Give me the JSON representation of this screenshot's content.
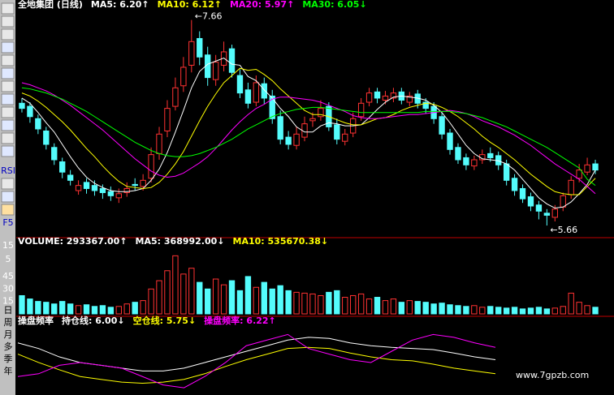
{
  "chart_data": [
    {
      "type": "candlestick",
      "title": "全地集团 (日线)",
      "ylim": [
        5.55,
        7.76
      ],
      "up_color": "#ff3232",
      "down_color": "#54fcfc",
      "open": [
        6.85,
        6.82,
        6.7,
        6.58,
        6.42,
        6.28,
        6.15,
        6.0,
        6.08,
        6.05,
        6.02,
        5.99,
        5.93,
        5.98,
        6.06,
        6.04,
        6.12,
        6.36,
        6.58,
        6.82,
        7.02,
        7.22,
        7.48,
        7.32,
        7.08,
        7.22,
        7.38,
        7.12,
        6.98,
        6.86,
        7.04,
        6.92,
        6.72,
        6.52,
        6.44,
        6.52,
        6.68,
        6.72,
        6.82,
        6.64,
        6.48,
        6.56,
        6.72,
        6.86,
        6.96,
        6.88,
        6.9,
        6.96,
        6.86,
        6.94,
        6.86,
        6.82,
        6.72,
        6.56,
        6.42,
        6.32,
        6.24,
        6.3,
        6.36,
        6.34,
        6.26,
        6.12,
        6.02,
        5.94,
        5.86,
        5.78,
        5.74,
        5.84,
        5.96,
        6.12,
        6.18,
        6.26
      ],
      "high": [
        6.9,
        6.86,
        6.74,
        6.62,
        6.46,
        6.32,
        6.2,
        6.1,
        6.12,
        6.1,
        6.06,
        6.04,
        6.02,
        6.08,
        6.12,
        6.16,
        6.42,
        6.62,
        6.88,
        7.1,
        7.3,
        7.66,
        7.55,
        7.4,
        7.32,
        7.45,
        7.42,
        7.18,
        7.05,
        7.12,
        7.1,
        6.98,
        6.78,
        6.58,
        6.62,
        6.72,
        6.76,
        6.88,
        6.86,
        6.7,
        6.6,
        6.76,
        6.9,
        7.0,
        7.0,
        6.97,
        7.0,
        7.0,
        6.96,
        6.98,
        6.9,
        6.86,
        6.76,
        6.6,
        6.46,
        6.36,
        6.34,
        6.4,
        6.42,
        6.38,
        6.3,
        6.16,
        6.06,
        5.98,
        5.9,
        5.82,
        5.86,
        5.98,
        6.14,
        6.26,
        6.32,
        6.3
      ],
      "low": [
        6.76,
        6.66,
        6.55,
        6.4,
        6.25,
        6.12,
        6.05,
        5.96,
        5.97,
        5.95,
        5.92,
        5.9,
        5.88,
        5.94,
        6.0,
        6.0,
        6.08,
        6.3,
        6.52,
        6.78,
        6.96,
        7.15,
        7.22,
        7.02,
        7.02,
        7.16,
        7.1,
        6.9,
        6.8,
        6.82,
        6.84,
        6.65,
        6.45,
        6.4,
        6.4,
        6.48,
        6.62,
        6.68,
        6.58,
        6.45,
        6.44,
        6.52,
        6.68,
        6.82,
        6.85,
        6.84,
        6.86,
        6.84,
        6.82,
        6.8,
        6.75,
        6.65,
        6.5,
        6.35,
        6.26,
        6.2,
        6.2,
        6.26,
        6.28,
        6.2,
        6.05,
        5.95,
        5.88,
        5.8,
        5.72,
        5.66,
        5.7,
        5.8,
        5.92,
        6.08,
        6.15,
        6.16
      ],
      "close": [
        6.8,
        6.72,
        6.6,
        6.45,
        6.3,
        6.18,
        6.1,
        6.05,
        6.02,
        6.0,
        5.98,
        5.95,
        5.97,
        6.02,
        6.05,
        6.1,
        6.35,
        6.55,
        6.8,
        7.0,
        7.2,
        7.45,
        7.3,
        7.1,
        7.25,
        7.35,
        7.15,
        6.95,
        6.85,
        7.05,
        6.9,
        6.7,
        6.5,
        6.45,
        6.55,
        6.65,
        6.7,
        6.8,
        6.62,
        6.5,
        6.55,
        6.7,
        6.85,
        6.95,
        6.9,
        6.92,
        6.95,
        6.88,
        6.92,
        6.85,
        6.8,
        6.7,
        6.55,
        6.4,
        6.3,
        6.25,
        6.3,
        6.35,
        6.32,
        6.25,
        6.1,
        6.0,
        5.92,
        5.85,
        5.8,
        5.76,
        5.82,
        5.95,
        6.1,
        6.2,
        6.25,
        6.2
      ],
      "series": [
        {
          "name": "MA5: 6.20↑",
          "color": "#ffffff",
          "values": [
            6.9,
            6.85,
            6.76,
            6.66,
            6.57,
            6.45,
            6.33,
            6.22,
            6.13,
            6.07,
            6.03,
            6.0,
            5.99,
            5.99,
            6.0,
            6.02,
            6.1,
            6.21,
            6.37,
            6.57,
            6.78,
            7.0,
            7.16,
            7.23,
            7.26,
            7.29,
            7.23,
            7.22,
            7.11,
            7.07,
            6.98,
            6.9,
            6.8,
            6.72,
            6.62,
            6.57,
            6.57,
            6.63,
            6.66,
            6.65,
            6.63,
            6.63,
            6.64,
            6.71,
            6.79,
            6.86,
            6.91,
            6.92,
            6.91,
            6.9,
            6.88,
            6.83,
            6.76,
            6.66,
            6.55,
            6.44,
            6.36,
            6.31,
            6.3,
            6.29,
            6.26,
            6.2,
            6.11,
            6.02,
            5.93,
            5.87,
            5.83,
            5.84,
            5.89,
            5.97,
            6.06,
            6.2
          ]
        },
        {
          "name": "MA10: 6.12↑",
          "color": "#ffff00",
          "values": [
            6.95,
            6.92,
            6.87,
            6.81,
            6.74,
            6.67,
            6.59,
            6.5,
            6.41,
            6.33,
            6.24,
            6.16,
            6.09,
            6.04,
            6.03,
            6.02,
            6.03,
            6.08,
            6.16,
            6.26,
            6.38,
            6.53,
            6.68,
            6.82,
            6.94,
            7.05,
            7.12,
            7.19,
            7.17,
            7.18,
            7.13,
            7.07,
            6.99,
            6.92,
            6.85,
            6.78,
            6.74,
            6.74,
            6.72,
            6.69,
            6.66,
            6.64,
            6.64,
            6.67,
            6.7,
            6.71,
            6.74,
            6.78,
            6.81,
            6.83,
            6.85,
            6.84,
            6.81,
            6.77,
            6.72,
            6.66,
            6.6,
            6.53,
            6.47,
            6.42,
            6.36,
            6.3,
            6.23,
            6.16,
            6.1,
            6.04,
            5.99,
            5.97,
            5.96,
            5.96,
            6.04,
            6.12
          ]
        },
        {
          "name": "MA20: 5.97↑",
          "color": "#ff00ff",
          "values": [
            7.05,
            7.03,
            7.0,
            6.97,
            6.93,
            6.88,
            6.83,
            6.77,
            6.71,
            6.65,
            6.59,
            6.52,
            6.45,
            6.38,
            6.31,
            6.25,
            6.19,
            6.15,
            6.13,
            6.14,
            6.17,
            6.22,
            6.27,
            6.33,
            6.41,
            6.5,
            6.59,
            6.67,
            6.74,
            6.8,
            6.84,
            6.89,
            6.91,
            6.91,
            6.9,
            6.89,
            6.88,
            6.86,
            6.83,
            6.8,
            6.77,
            6.73,
            6.71,
            6.7,
            6.7,
            6.71,
            6.72,
            6.73,
            6.74,
            6.74,
            6.75,
            6.76,
            6.77,
            6.78,
            6.77,
            6.75,
            6.72,
            6.68,
            6.65,
            6.62,
            6.58,
            6.54,
            6.49,
            6.44,
            6.38,
            6.32,
            6.26,
            6.21,
            6.16,
            6.11,
            6.04,
            5.97
          ]
        },
        {
          "name": "MA30: 6.05↓",
          "color": "#00ff00",
          "values": [
            7.0,
            6.99,
            6.97,
            6.95,
            6.92,
            6.89,
            6.85,
            6.81,
            6.77,
            6.72,
            6.67,
            6.62,
            6.57,
            6.52,
            6.47,
            6.43,
            6.39,
            6.36,
            6.34,
            6.33,
            6.33,
            6.34,
            6.36,
            6.39,
            6.42,
            6.46,
            6.5,
            6.55,
            6.6,
            6.64,
            6.68,
            6.72,
            6.75,
            6.77,
            6.79,
            6.8,
            6.81,
            6.81,
            6.8,
            6.79,
            6.78,
            6.77,
            6.76,
            6.76,
            6.76,
            6.76,
            6.76,
            6.76,
            6.76,
            6.76,
            6.77,
            6.77,
            6.77,
            6.77,
            6.76,
            6.75,
            6.73,
            6.71,
            6.68,
            6.65,
            6.62,
            6.58,
            6.54,
            6.5,
            6.46,
            6.42,
            6.37,
            6.32,
            6.27,
            6.22,
            6.11,
            6.05
          ]
        }
      ],
      "annotations": [
        {
          "text": "←7.66",
          "value": 7.66
        },
        {
          "text": "←5.66",
          "value": 5.66
        }
      ]
    },
    {
      "type": "bar",
      "title": "VOLUME: 293367.00↑",
      "legend": [
        {
          "text": "MA5: 368992.00↓",
          "color": "#ffffff"
        },
        {
          "text": "MA10: 535670.38↓",
          "color": "#ffff00"
        }
      ],
      "ylim": [
        0,
        85
      ],
      "yticks": [
        45,
        30,
        15
      ],
      "values": [
        22,
        18,
        15,
        14,
        12,
        15,
        12,
        10,
        11,
        9,
        10,
        8,
        9,
        12,
        14,
        16,
        30,
        40,
        52,
        70,
        48,
        55,
        38,
        30,
        42,
        35,
        40,
        28,
        45,
        32,
        38,
        30,
        34,
        28,
        26,
        25,
        24,
        22,
        26,
        28,
        20,
        22,
        24,
        18,
        20,
        16,
        18,
        14,
        16,
        15,
        14,
        12,
        13,
        11,
        10,
        9,
        10,
        8,
        9,
        8,
        7,
        8,
        6,
        7,
        8,
        6,
        7,
        9,
        25,
        14,
        10,
        8
      ]
    },
    {
      "type": "line",
      "title": "操盘频率",
      "ylim": [
        5.4,
        6.6
      ],
      "series": [
        {
          "name": "持仓线: 6.00↓",
          "color": "#ffffff",
          "values": [
            6.3,
            6.2,
            6.05,
            5.95,
            5.9,
            5.85,
            5.8,
            5.8,
            5.85,
            5.95,
            6.05,
            6.15,
            6.25,
            6.35,
            6.4,
            6.38,
            6.3,
            6.25,
            6.22,
            6.2,
            6.18,
            6.12,
            6.05,
            6.0
          ]
        },
        {
          "name": "空仓线: 5.75↓",
          "color": "#ffff00",
          "values": [
            6.1,
            5.95,
            5.82,
            5.7,
            5.65,
            5.6,
            5.58,
            5.6,
            5.65,
            5.75,
            5.88,
            6.0,
            6.1,
            6.2,
            6.22,
            6.2,
            6.12,
            6.05,
            6.0,
            5.98,
            5.92,
            5.85,
            5.8,
            5.75
          ]
        },
        {
          "name": "操盘频率: 6.22↑",
          "color": "#ff00ff",
          "values": [
            5.7,
            5.75,
            5.9,
            5.95,
            5.9,
            5.85,
            5.7,
            5.55,
            5.5,
            5.7,
            5.95,
            6.25,
            6.35,
            6.45,
            6.2,
            6.1,
            6.0,
            5.95,
            6.15,
            6.35,
            6.45,
            6.4,
            6.3,
            6.22
          ]
        }
      ]
    }
  ],
  "sidebar": {
    "labels": [
      "RSI",
      "F5",
      "15",
      "5",
      "日",
      "周",
      "月",
      "多",
      "季",
      "年"
    ]
  },
  "watermark": "www.7gpzb.com"
}
